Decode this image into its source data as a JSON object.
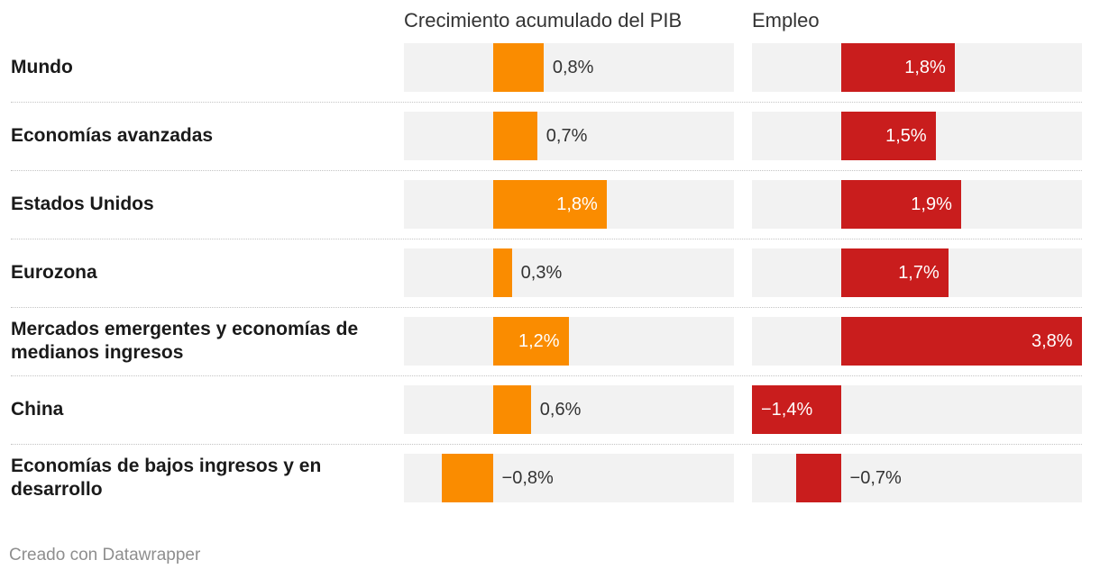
{
  "chart_data": {
    "type": "bar",
    "orientation": "horizontal",
    "columns": [
      {
        "key": "gdp",
        "title": "Crecimiento acumulado del PIB",
        "color": "#fa8c00",
        "xlim": [
          -1.4,
          3.8
        ]
      },
      {
        "key": "emp",
        "title": "Empleo",
        "color": "#c91d1d",
        "xlim": [
          -1.4,
          3.8
        ]
      }
    ],
    "categories": [
      "Mundo",
      "Economías avanzadas",
      "Estados Unidos",
      "Eurozona",
      "Mercados emergentes y economías de medianos ingresos",
      "China",
      "Economías de bajos ingresos y en desarrollo"
    ],
    "series": [
      {
        "name": "Crecimiento acumulado del PIB",
        "values": [
          0.8,
          0.7,
          1.8,
          0.3,
          1.2,
          0.6,
          -0.8
        ],
        "labels": [
          "0,8%",
          "0,7%",
          "1,8%",
          "0,3%",
          "1,2%",
          "0,6%",
          "−0,8%"
        ]
      },
      {
        "name": "Empleo",
        "values": [
          1.8,
          1.5,
          1.9,
          1.7,
          3.8,
          -1.4,
          -0.7
        ],
        "labels": [
          "1,8%",
          "1,5%",
          "1,9%",
          "1,7%",
          "3,8%",
          "−1,4%",
          "−0,7%"
        ]
      }
    ]
  },
  "footer": "Creado con Datawrapper"
}
